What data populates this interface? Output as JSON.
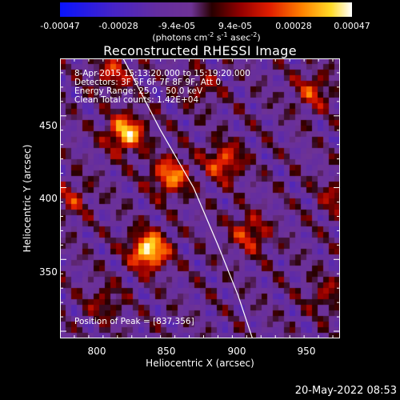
{
  "chart_data": {
    "type": "heatmap",
    "title": "Reconstructed RHESSI Image",
    "xlabel": "Heliocentric X (arcsec)",
    "ylabel": "Heliocentric Y (arcsec)",
    "xlim": [
      775,
      970
    ],
    "ylim": [
      295,
      490
    ],
    "x_ticks": [
      800,
      850,
      900,
      950
    ],
    "y_ticks": [
      350,
      400,
      450
    ],
    "colorbar": {
      "ticks": [
        "-0.00047",
        "-0.00028",
        "-9.4e-05",
        "9.4e-05",
        "0.00028",
        "0.00047"
      ],
      "range": [
        -0.00047,
        0.00047
      ],
      "units_parts": [
        "(photons cm",
        "-2",
        " s",
        "-1",
        " asec",
        "-2",
        ")"
      ],
      "colormap": "rainbow-like: blue-purple-red-orange-yellow-white"
    },
    "annotations": {
      "time": "8-Apr-2015 15:13:20.000 to 15:19:20.000",
      "detectors": "Detectors: 3F 5F 6F 7F 8F 9F, Att 0",
      "energy": "Energy Range: 25.0 - 50.0 keV",
      "method": "Clean     Total counts: 1.42E+04",
      "peak": "Position of Peak = [837,356]"
    },
    "sources": [
      {
        "x": 837,
        "y": 356,
        "strength": 1.0
      },
      {
        "x": 821,
        "y": 438,
        "strength": 0.85
      },
      {
        "x": 852,
        "y": 408,
        "strength": 0.7
      },
      {
        "x": 889,
        "y": 418,
        "strength": 0.6
      },
      {
        "x": 907,
        "y": 368,
        "strength": 0.5
      },
      {
        "x": 951,
        "y": 467,
        "strength": 0.45
      },
      {
        "x": 968,
        "y": 393,
        "strength": 0.35
      },
      {
        "x": 812,
        "y": 480,
        "strength": 0.45
      },
      {
        "x": 873,
        "y": 470,
        "strength": 0.3
      },
      {
        "x": 960,
        "y": 325,
        "strength": 0.3
      },
      {
        "x": 783,
        "y": 392,
        "strength": 0.35
      },
      {
        "x": 806,
        "y": 320,
        "strength": 0.3
      }
    ],
    "limb": [
      [
        819,
        490
      ],
      [
        845,
        440
      ],
      [
        868,
        400
      ],
      [
        885,
        360
      ],
      [
        899,
        325
      ],
      [
        909,
        295
      ]
    ],
    "grid": false,
    "legend": "none"
  },
  "timestamp": "20-May-2022 08:53"
}
